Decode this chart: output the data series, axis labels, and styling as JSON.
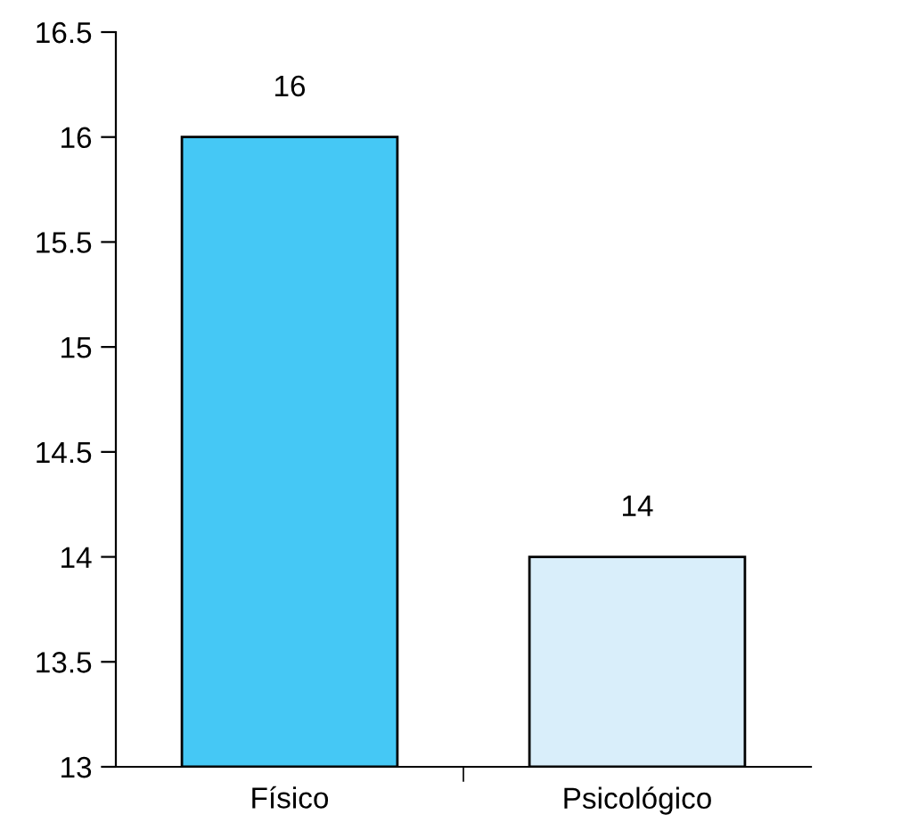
{
  "chart_data": {
    "type": "bar",
    "categories": [
      "Físico",
      "Psicológico"
    ],
    "values": [
      16,
      14
    ],
    "colors": [
      "#45c8f5",
      "#d9eefa"
    ],
    "ylim": [
      13,
      16.5
    ],
    "yticks": [
      13,
      13.5,
      14,
      14.5,
      15,
      15.5,
      16,
      16.5
    ],
    "data_labels": true,
    "grid": false,
    "legend": false
  }
}
